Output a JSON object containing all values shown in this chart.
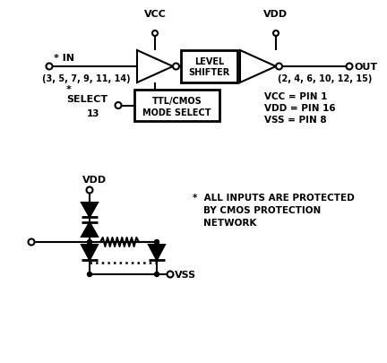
{
  "bg_color": "#ffffff",
  "line_color": "#000000",
  "fig_width": 4.32,
  "fig_height": 4.06,
  "dpi": 100,
  "labels": {
    "vcc": "VCC",
    "vdd": "VDD",
    "in": "* IN",
    "in_pins": "(3, 5, 7, 9, 11, 14)",
    "out": "OUT",
    "out_pins": "(2, 4, 6, 10, 12, 15)",
    "select": "SELECT",
    "select_pin": "13",
    "select_star": "*",
    "mode_select_line1": "TTL/CMOS",
    "mode_select_line2": "MODE SELECT",
    "level_shifter_line1": "LEVEL",
    "level_shifter_line2": "SHIFTER",
    "pin_info_line1": "VCC = PIN 1",
    "pin_info_line2": "VDD = PIN 16",
    "pin_info_line3": "VSS = PIN 8",
    "vdd_bottom": "VDD",
    "vss_bottom": "VSS",
    "protection_star": "*",
    "protection_line1": "ALL INPUTS ARE PROTECTED",
    "protection_line2": "BY CMOS PROTECTION",
    "protection_line3": "NETWORK"
  }
}
